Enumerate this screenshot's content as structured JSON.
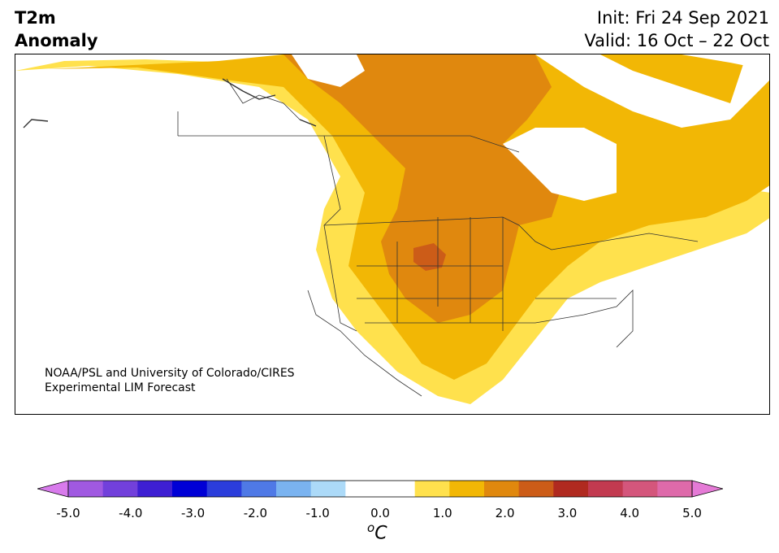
{
  "header": {
    "title_line1": "T2m",
    "title_line2": "Anomaly",
    "init_text": "Init: Fri 24 Sep 2021",
    "valid_text": "Valid: 16 Oct – 22 Oct"
  },
  "map": {
    "region": "North America",
    "credit_line1": "NOAA/PSL and University of Colorado/CIRES",
    "credit_line2": "Experimental LIM Forecast",
    "colors": {
      "land_0_5_to_1_0": "#ffe14d",
      "land_1_0_to_1_5": "#f2b705",
      "land_1_5_to_2_0": "#e0880e",
      "land_2_0_to_2_5": "#cc5c18",
      "neutral": "#ffffff",
      "borders": "#333333"
    }
  },
  "colorbar": {
    "unit_base": "C",
    "unit_sup": "o",
    "colors": [
      "#d87bec",
      "#a059e1",
      "#7240db",
      "#3e1fd3",
      "#0000d6",
      "#2b3ddb",
      "#4f79e6",
      "#7ab3f0",
      "#acdaf8",
      "#ffffff",
      "#ffffff",
      "#ffe14d",
      "#f2b705",
      "#e0880e",
      "#cc5c18",
      "#b02a20",
      "#c23a50",
      "#d4567c",
      "#de6aaa",
      "#e57ad6"
    ],
    "ticks": [
      "-5.0",
      "-4.0",
      "-3.0",
      "-2.0",
      "-1.0",
      "0.0",
      "1.0",
      "2.0",
      "3.0",
      "4.0",
      "5.0"
    ],
    "range": [
      -5.0,
      5.0
    ]
  }
}
